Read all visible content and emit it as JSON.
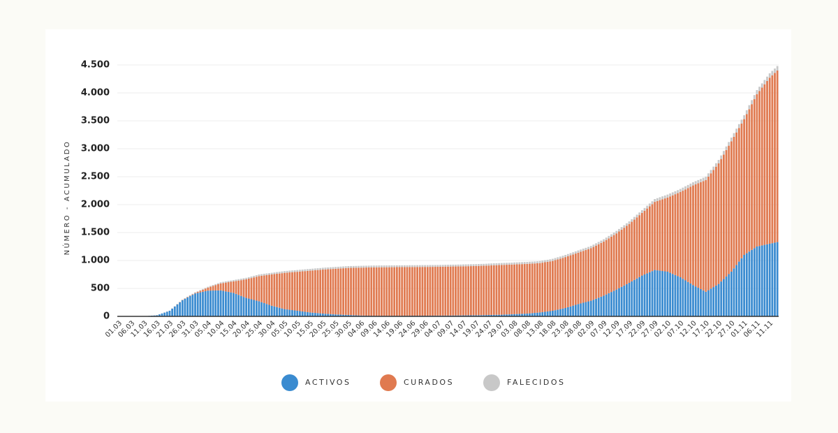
{
  "chart_data": {
    "type": "stacked_bar",
    "y_label": "NÚMERO - ACUMULADO",
    "ylim": [
      0,
      4500
    ],
    "yticks": [
      0,
      500,
      {
        "value": 1000,
        "label": "1.000"
      },
      {
        "value": 1500,
        "label": "1.500"
      },
      {
        "value": 2000,
        "label": "2.000"
      },
      {
        "value": 2500,
        "label": "2.500"
      },
      {
        "value": 3000,
        "label": "3.000"
      },
      {
        "value": 3500,
        "label": "3.500"
      },
      {
        "value": 4000,
        "label": "4.000"
      },
      {
        "value": 4500,
        "label": "4.500"
      }
    ],
    "grid": true,
    "legend": "bottom",
    "categories": [
      "01.03",
      null,
      null,
      null,
      null,
      "06.03",
      null,
      null,
      null,
      null,
      "11.03",
      null,
      null,
      null,
      null,
      "16.03",
      null,
      null,
      null,
      null,
      "21.03",
      null,
      null,
      null,
      null,
      "26.03",
      null,
      null,
      null,
      null,
      "31.03",
      null,
      null,
      null,
      null,
      "05.04",
      null,
      null,
      null,
      null,
      "10.04",
      null,
      null,
      null,
      null,
      "15.04",
      null,
      null,
      null,
      null,
      "20.04",
      null,
      null,
      null,
      null,
      "25.04",
      null,
      null,
      null,
      null,
      "30.04",
      null,
      null,
      null,
      null,
      "05.05",
      null,
      null,
      null,
      null,
      "10.05",
      null,
      null,
      null,
      null,
      "15.05",
      null,
      null,
      null,
      null,
      "20.05",
      null,
      null,
      null,
      null,
      "25.05",
      null,
      null,
      null,
      null,
      "30.05",
      null,
      null,
      null,
      null,
      "04.06",
      null,
      null,
      null,
      null,
      "09.06",
      null,
      null,
      null,
      null,
      "14.06",
      null,
      null,
      null,
      null,
      "19.06",
      null,
      null,
      null,
      null,
      "24.06",
      null,
      null,
      null,
      null,
      "29.06",
      null,
      null,
      null,
      null,
      "04.07",
      null,
      null,
      null,
      null,
      "09.07",
      null,
      null,
      null,
      null,
      "14.07",
      null,
      null,
      null,
      null,
      "19.07",
      null,
      null,
      null,
      null,
      "24.07",
      null,
      null,
      null,
      null,
      "29.07",
      null,
      null,
      null,
      null,
      "03.08",
      null,
      null,
      null,
      null,
      "08.08",
      null,
      null,
      null,
      null,
      "13.08",
      null,
      null,
      null,
      null,
      "18.08",
      null,
      null,
      null,
      null,
      "23.08",
      null,
      null,
      null,
      null,
      "28.08",
      null,
      null,
      null,
      null,
      "02.09",
      null,
      null,
      null,
      null,
      "07.09",
      null,
      null,
      null,
      null,
      "12.09",
      null,
      null,
      null,
      null,
      "17.09",
      null,
      null,
      null,
      null,
      "22.09",
      null,
      null,
      null,
      null,
      "27.09",
      null,
      null,
      null,
      null,
      "02.10",
      null,
      null,
      null,
      null,
      "07.10",
      null,
      null,
      null,
      null,
      "12.10",
      null,
      null,
      null,
      null,
      "17.10",
      null,
      null,
      null,
      null,
      "22.10",
      null,
      null,
      null,
      null,
      "27.10",
      null,
      null,
      null,
      null,
      "01.11",
      null,
      null,
      null,
      null,
      "06.11",
      null,
      null,
      null,
      null,
      "11.11",
      null,
      null,
      null
    ],
    "series": [
      {
        "name": "ACTIVOS",
        "color": "#3a8bd0",
        "values": [
          0,
          0,
          0,
          0,
          0,
          0,
          0,
          0,
          1,
          1,
          2,
          5,
          9,
          13,
          16,
          20,
          36,
          52,
          68,
          84,
          100,
          138,
          176,
          214,
          252,
          290,
          314,
          338,
          362,
          386,
          410,
          420,
          430,
          440,
          450,
          460,
          461,
          462,
          463,
          464,
          465,
          456,
          447,
          438,
          429,
          420,
          402,
          384,
          366,
          348,
          330,
          318,
          306,
          294,
          282,
          270,
          254,
          238,
          222,
          206,
          190,
          178,
          166,
          154,
          142,
          130,
          124,
          118,
          112,
          106,
          100,
          94,
          88,
          82,
          76,
          70,
          66,
          62,
          58,
          54,
          50,
          47,
          44,
          41,
          38,
          35,
          33,
          31,
          29,
          27,
          25,
          23,
          21,
          19,
          17,
          15,
          14,
          13,
          12,
          11,
          10,
          10,
          10,
          10,
          10,
          10,
          10,
          10,
          10,
          10,
          10,
          10,
          11,
          11,
          12,
          12,
          12,
          12,
          12,
          12,
          12,
          12,
          13,
          13,
          14,
          14,
          14,
          14,
          15,
          15,
          15,
          16,
          16,
          17,
          17,
          18,
          18,
          19,
          19,
          20,
          20,
          21,
          22,
          23,
          24,
          25,
          26,
          27,
          28,
          29,
          30,
          32,
          34,
          36,
          38,
          40,
          42,
          44,
          46,
          48,
          50,
          54,
          58,
          62,
          66,
          70,
          76,
          82,
          88,
          94,
          100,
          110,
          120,
          130,
          140,
          150,
          164,
          178,
          192,
          206,
          220,
          232,
          244,
          256,
          268,
          280,
          298,
          316,
          334,
          352,
          370,
          392,
          414,
          436,
          458,
          480,
          504,
          528,
          552,
          576,
          600,
          626,
          652,
          678,
          704,
          730,
          750,
          770,
          790,
          810,
          830,
          824,
          818,
          812,
          806,
          800,
          780,
          760,
          740,
          720,
          700,
          672,
          644,
          616,
          588,
          560,
          536,
          512,
          488,
          464,
          440,
          468,
          496,
          524,
          552,
          580,
          624,
          668,
          712,
          756,
          800,
          860,
          920,
          980,
          1040,
          1100,
          1130,
          1160,
          1190,
          1220,
          1250,
          1260,
          1270,
          1280,
          1290,
          1300,
          1310,
          1320,
          1330
        ]
      },
      {
        "name": "CURADOS",
        "color": "#e07a50",
        "values": [
          0,
          0,
          0,
          0,
          0,
          0,
          0,
          0,
          0,
          0,
          0,
          0,
          0,
          0,
          0,
          0,
          0,
          0,
          1,
          1,
          1,
          2,
          3,
          4,
          4,
          5,
          6,
          7,
          8,
          9,
          10,
          19,
          28,
          37,
          46,
          55,
          69,
          83,
          97,
          111,
          125,
          141,
          157,
          174,
          190,
          206,
          231,
          257,
          282,
          308,
          333,
          357,
          380,
          404,
          427,
          451,
          473,
          495,
          516,
          538,
          560,
          578,
          596,
          613,
          631,
          649,
          659,
          669,
          678,
          688,
          698,
          708,
          718,
          728,
          738,
          748,
          756,
          764,
          771,
          779,
          787,
          793,
          799,
          805,
          811,
          817,
          822,
          827,
          832,
          837,
          842,
          845,
          848,
          851,
          854,
          857,
          859,
          861,
          863,
          865,
          867,
          867,
          868,
          868,
          869,
          869,
          869,
          870,
          870,
          871,
          871,
          871,
          871,
          871,
          871,
          871,
          871,
          872,
          872,
          873,
          873,
          873,
          873,
          873,
          873,
          873,
          874,
          875,
          876,
          876,
          877,
          877,
          877,
          878,
          878,
          878,
          879,
          879,
          880,
          880,
          881,
          882,
          883,
          883,
          884,
          885,
          886,
          887,
          888,
          889,
          890,
          890,
          890,
          889,
          889,
          889,
          889,
          889,
          889,
          889,
          889,
          888,
          886,
          885,
          884,
          883,
          885,
          887,
          888,
          890,
          892,
          896,
          900,
          903,
          907,
          911,
          913,
          915,
          916,
          918,
          920,
          924,
          928,
          931,
          935,
          939,
          945,
          950,
          956,
          961,
          967,
          975,
          982,
          990,
          997,
          1005,
          1015,
          1024,
          1034,
          1043,
          1053,
          1067,
          1080,
          1094,
          1107,
          1121,
          1141,
          1160,
          1180,
          1199,
          1219,
          1241,
          1262,
          1284,
          1305,
          1327,
          1367,
          1406,
          1446,
          1485,
          1525,
          1577,
          1628,
          1680,
          1731,
          1783,
          1827,
          1870,
          1914,
          1957,
          2001,
          2032,
          2064,
          2095,
          2127,
          2158,
          2193,
          2228,
          2264,
          2299,
          2334,
          2353,
          2372,
          2392,
          2411,
          2430,
          2489,
          2548,
          2608,
          2667,
          2726,
          2775,
          2824,
          2874,
          2923,
          2972,
          3005,
          3037,
          3070
        ]
      },
      {
        "name": "FALECIDOS",
        "color": "#c8c8c8",
        "values": [
          0,
          0,
          0,
          0,
          0,
          0,
          0,
          0,
          0,
          0,
          0,
          0,
          0,
          0,
          0,
          0,
          0,
          0,
          0,
          0,
          1,
          2,
          2,
          3,
          4,
          5,
          6,
          7,
          8,
          9,
          10,
          11,
          12,
          13,
          14,
          15,
          16,
          17,
          18,
          19,
          20,
          21,
          22,
          22,
          23,
          24,
          25,
          25,
          26,
          26,
          27,
          27,
          28,
          28,
          29,
          29,
          29,
          30,
          30,
          30,
          30,
          30,
          31,
          31,
          31,
          31,
          31,
          32,
          32,
          32,
          32,
          32,
          32,
          32,
          32,
          32,
          32,
          32,
          32,
          32,
          33,
          33,
          33,
          33,
          33,
          33,
          33,
          33,
          33,
          33,
          33,
          33,
          33,
          33,
          33,
          33,
          33,
          33,
          33,
          33,
          33,
          33,
          33,
          33,
          33,
          33,
          33,
          33,
          33,
          33,
          33,
          33,
          33,
          33,
          33,
          33,
          33,
          33,
          33,
          33,
          33,
          33,
          33,
          33,
          33,
          33,
          33,
          33,
          33,
          33,
          33,
          33,
          33,
          33,
          33,
          34,
          34,
          34,
          34,
          34,
          34,
          34,
          34,
          34,
          34,
          35,
          35,
          35,
          35,
          35,
          35,
          35,
          35,
          35,
          35,
          36,
          36,
          36,
          36,
          36,
          36,
          36,
          36,
          36,
          36,
          37,
          37,
          37,
          37,
          37,
          38,
          38,
          38,
          38,
          38,
          39,
          39,
          39,
          39,
          39,
          40,
          40,
          40,
          40,
          40,
          41,
          41,
          42,
          42,
          43,
          43,
          43,
          44,
          44,
          45,
          45,
          45,
          46,
          46,
          47,
          47,
          47,
          48,
          48,
          49,
          49,
          49,
          50,
          50,
          51,
          51,
          51,
          52,
          52,
          53,
          53,
          53,
          54,
          54,
          55,
          55,
          55,
          56,
          56,
          57,
          57,
          57,
          58,
          58,
          59,
          59,
          60,
          60,
          61,
          62,
          62,
          63,
          64,
          65,
          66,
          66,
          67,
          68,
          69,
          70,
          70,
          71,
          72,
          73,
          74,
          74,
          75,
          76,
          77,
          78,
          78,
          79,
          79,
          80
        ]
      }
    ]
  }
}
